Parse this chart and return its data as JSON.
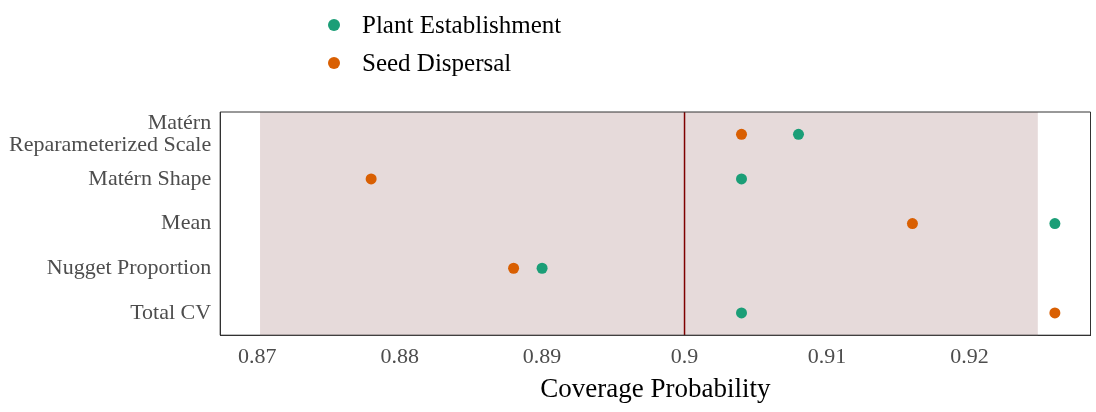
{
  "chart_data": {
    "type": "scatter",
    "xlabel": "Coverage Probability",
    "categories": [
      "Matérn\nReparameterized Scale",
      "Matérn Shape",
      "Mean",
      "Nugget Proportion",
      "Total CV"
    ],
    "series": [
      {
        "name": "Plant Establishment",
        "color": "#1b9e77",
        "values": [
          0.908,
          0.904,
          0.926,
          0.89,
          0.904
        ]
      },
      {
        "name": "Seed Dispersal",
        "color": "#d95f02",
        "values": [
          0.904,
          0.878,
          0.916,
          0.888,
          0.926
        ]
      }
    ],
    "xlim": [
      0.8674,
      0.9285
    ],
    "xticks": [
      0.87,
      0.88,
      0.89,
      0.9,
      0.91,
      0.92
    ],
    "ref_lines": [
      {
        "axis": "x",
        "value": 0.9,
        "color": "#7f0000"
      }
    ],
    "bands": [
      {
        "axis": "x",
        "from": 0.8702,
        "to": 0.9248,
        "color": "#e6dada"
      }
    ],
    "legend": "top left",
    "marker": "circle",
    "orientation": "horizontal"
  }
}
